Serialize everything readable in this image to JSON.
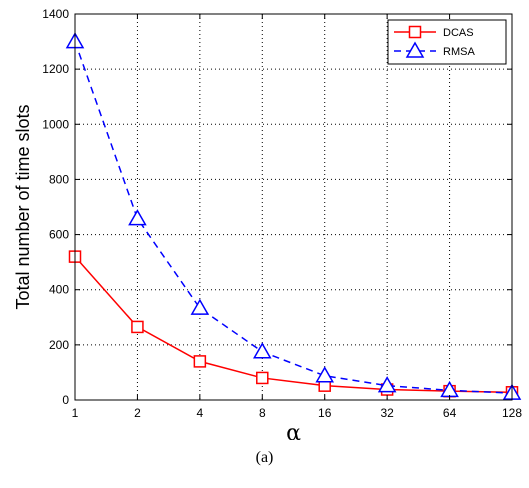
{
  "chart_data": {
    "type": "line",
    "x": [
      1,
      2,
      4,
      8,
      16,
      32,
      64,
      128
    ],
    "xticks": [
      "1",
      "2",
      "4",
      "8",
      "16",
      "32",
      "64",
      "128"
    ],
    "xscale": "log2",
    "xlim": [
      1,
      128
    ],
    "ylim": [
      0,
      1400
    ],
    "yticks": [
      0,
      200,
      400,
      600,
      800,
      1000,
      1200,
      1400
    ],
    "xlabel": "α",
    "ylabel": "Total number of time slots",
    "grid": true,
    "legend": "top-right",
    "series": [
      {
        "name": "DCAS",
        "color": "#ff0000",
        "marker": "square",
        "linestyle": "solid",
        "values": [
          520,
          265,
          140,
          80,
          52,
          38,
          32,
          28
        ]
      },
      {
        "name": "RMSA",
        "color": "#0000ff",
        "marker": "triangle",
        "linestyle": "dashed",
        "values": [
          1300,
          658,
          333,
          175,
          88,
          52,
          35,
          25
        ]
      }
    ]
  },
  "caption": "(a)"
}
